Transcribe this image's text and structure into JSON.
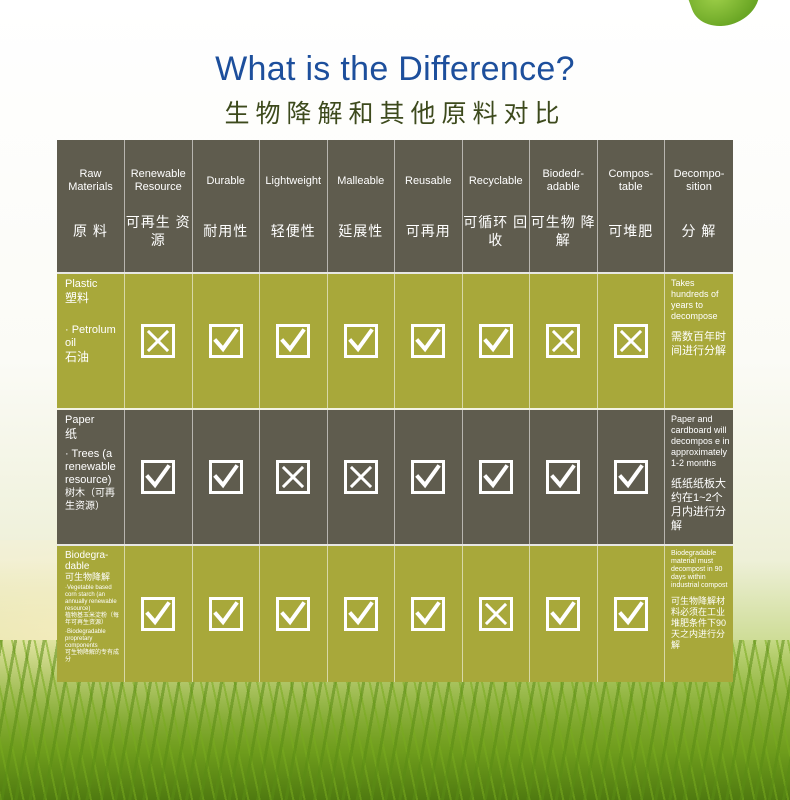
{
  "title_en": "What is the Difference?",
  "title_cn": "生物降解和其他原料对比",
  "headers": [
    {
      "en": "Raw Materials",
      "cn": "原 料"
    },
    {
      "en": "Renewable Resource",
      "cn": "可再生 资源"
    },
    {
      "en": "Durable",
      "cn": "耐用性"
    },
    {
      "en": "Lightweight",
      "cn": "轻便性"
    },
    {
      "en": "Malleable",
      "cn": "延展性"
    },
    {
      "en": "Reusable",
      "cn": "可再用"
    },
    {
      "en": "Recyclable",
      "cn": "可循环 回收"
    },
    {
      "en": "Biodedr- adable",
      "cn": "可生物 降解"
    },
    {
      "en": "Compos- table",
      "cn": "可堆肥"
    },
    {
      "en": "Decompo- sition",
      "cn": "分 解"
    }
  ],
  "rows": [
    {
      "label": {
        "line1_en": "Plastic",
        "line1_cn": "塑料",
        "line2_en": "· Petrolum oil",
        "line2_cn": "石油"
      },
      "marks": [
        "cross",
        "check",
        "check",
        "check",
        "check",
        "check",
        "cross",
        "cross"
      ],
      "decomposition": {
        "en": "Takes hundreds of years to decompose",
        "cn": "需数百年时间进行分解"
      }
    },
    {
      "label": {
        "line1_en": "Paper",
        "line1_cn": "纸",
        "line2_en": "· Trees (a renewable resource)",
        "line2_cn": "树木（可再生资源）"
      },
      "marks": [
        "check",
        "check",
        "cross",
        "cross",
        "check",
        "check",
        "check",
        "check"
      ],
      "decomposition": {
        "en": "Paper and cardboard will decompos e in approximately 1-2 months",
        "cn": "纸纸纸板大约在1~2个月内进行分解"
      }
    },
    {
      "label": {
        "line1_en": "Biodegra- dable",
        "line1_cn": "可生物降解",
        "line2_en": "·Vegetable based corn starch (an annually renewable resource)",
        "line2_cn": "植物基玉米淀粉（每年可再生资源）",
        "line3_en": "·Biodegradable propretary components",
        "line3_cn": "可生物降解的专有成分"
      },
      "marks": [
        "check",
        "check",
        "check",
        "check",
        "check",
        "cross",
        "check",
        "check"
      ],
      "decomposition": {
        "en": "Biodegradable material must decompost in 90 days within industrial compost",
        "cn": "可生物降解材料必须在工业堆肥条件下90天之内进行分解"
      }
    }
  ],
  "colors": {
    "title_blue": "#1d4f9c",
    "header_row": "#5f5c4e",
    "olive_row": "#a8a83a",
    "dark_row": "#5f5c4e"
  }
}
